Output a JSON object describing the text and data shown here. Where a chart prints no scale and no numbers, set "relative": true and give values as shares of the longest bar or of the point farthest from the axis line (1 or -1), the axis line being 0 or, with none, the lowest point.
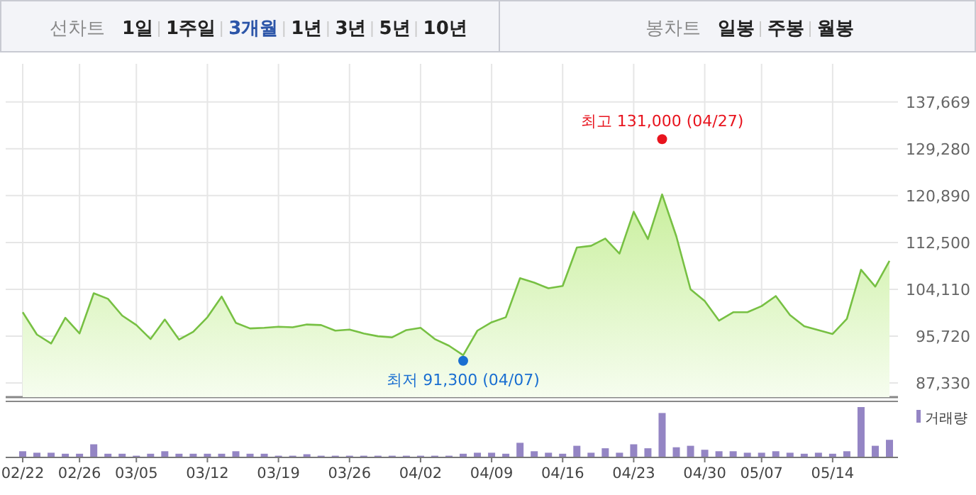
{
  "chart_data": [
    {
      "type": "other",
      "annotations": [
        "선차트",
        "1일",
        "1주일",
        "3개월",
        "1년",
        "3년",
        "5년",
        "10년",
        "봉차트",
        "일봉",
        "주봉",
        "월봉"
      ]
    },
    {
      "type": "area",
      "categories": [
        null,
        null,
        null,
        null,
        null,
        null,
        null,
        null,
        null,
        null,
        null,
        null,
        null,
        null,
        null,
        null,
        null,
        null,
        null,
        null,
        null,
        null,
        null,
        null,
        null,
        null,
        null,
        null,
        null,
        null,
        null,
        null,
        null,
        null,
        null,
        null,
        null,
        null,
        null,
        null,
        null,
        null,
        null,
        null,
        null,
        null,
        null,
        null,
        null,
        null,
        null,
        null,
        null,
        null,
        null,
        null,
        null,
        null,
        null,
        null,
        null,
        null
      ],
      "series": [
        {
          "type": "area",
          "color": "#77c043",
          "values": [
            100000,
            96000,
            94400,
            99000,
            96200,
            103400,
            102400,
            99400,
            97700,
            95200,
            98700,
            95100,
            96500,
            99100,
            102800,
            98100,
            97100,
            97200,
            97400,
            97300,
            97800,
            97700,
            96700,
            96900,
            96200,
            95700,
            95500,
            96800,
            97200,
            95200,
            94000,
            92300,
            96700,
            98200,
            99100,
            106100,
            105300,
            104300,
            104700,
            111600,
            111900,
            113200,
            110500,
            118000,
            113100,
            121100,
            113600,
            104100,
            102000,
            98500,
            100000,
            100000,
            101100,
            102900,
            99500,
            97500,
            96800,
            96100,
            98800,
            107600,
            104600,
            109200
          ]
        },
        {
          "type": "scatter",
          "color": "#e8141e",
          "values": [
            null,
            null,
            null,
            null,
            null,
            null,
            null,
            null,
            null,
            null,
            null,
            null,
            null,
            null,
            null,
            null,
            null,
            null,
            null,
            null,
            null,
            null,
            null,
            null,
            null,
            null,
            null,
            null,
            null,
            null,
            null,
            null,
            null,
            null,
            null,
            null,
            null,
            null,
            null,
            null,
            null,
            null,
            null,
            null,
            null,
            131000,
            null,
            null,
            null,
            null,
            null,
            null,
            null,
            null,
            null,
            null,
            null,
            null,
            null,
            null,
            null,
            null
          ]
        },
        {
          "type": "scatter",
          "color": "#1a6fd1",
          "values": [
            null,
            null,
            null,
            null,
            null,
            null,
            null,
            null,
            null,
            null,
            null,
            null,
            null,
            null,
            null,
            null,
            null,
            null,
            null,
            null,
            null,
            null,
            null,
            null,
            null,
            null,
            null,
            null,
            null,
            null,
            null,
            91300,
            null,
            null,
            null,
            null,
            null,
            null,
            null,
            null,
            null,
            null,
            null,
            null,
            null,
            null,
            null,
            null,
            null,
            null,
            null,
            null,
            null,
            null,
            null,
            null,
            null,
            null,
            null,
            null,
            null,
            null
          ]
        }
      ],
      "annotations": [
        {
          "text": "최고 131,000 (04/27)",
          "y": 131000
        },
        {
          "text": "최저 91,300 (04/07)",
          "y": 91300
        }
      ],
      "ylim": [
        84790,
        144500
      ],
      "yticks": [
        {
          "value": 87330,
          "label": "87,330"
        },
        {
          "value": 95720,
          "label": "95,720"
        },
        {
          "value": 104110,
          "label": "104,110"
        },
        {
          "value": 112500,
          "label": "112,500"
        },
        {
          "value": 120890,
          "label": "120,890"
        },
        {
          "value": 129280,
          "label": "129,280"
        },
        {
          "value": 137669,
          "label": "137,669"
        }
      ],
      "grid": true,
      "tick_labels": "y"
    },
    {
      "type": "bar",
      "relative": true,
      "categories": [
        "02/22",
        null,
        null,
        null,
        "02/26",
        null,
        null,
        null,
        "03/05",
        null,
        null,
        null,
        null,
        "03/12",
        null,
        null,
        null,
        null,
        "03/19",
        null,
        null,
        null,
        null,
        "03/26",
        null,
        null,
        null,
        null,
        "04/02",
        null,
        null,
        null,
        null,
        "04/09",
        null,
        null,
        null,
        null,
        "04/16",
        null,
        null,
        null,
        null,
        "04/23",
        null,
        null,
        null,
        null,
        "04/30",
        null,
        null,
        null,
        "05/07",
        null,
        null,
        null,
        null,
        "05/14",
        null,
        null,
        null,
        null
      ],
      "series": [
        {
          "name": "거래량",
          "color": "#9485c4",
          "values": [
            0.11,
            0.08,
            0.08,
            0.06,
            0.06,
            0.25,
            0.06,
            0.06,
            0.02,
            0.06,
            0.11,
            0.06,
            0.06,
            0.06,
            0.06,
            0.11,
            0.06,
            0.06,
            0.02,
            0.02,
            0.05,
            0.02,
            0.02,
            0.02,
            0.02,
            0.02,
            0.02,
            0.02,
            0.02,
            0.02,
            0.02,
            0.06,
            0.08,
            0.08,
            0.06,
            0.28,
            0.11,
            0.08,
            0.06,
            0.22,
            0.08,
            0.17,
            0.08,
            0.25,
            0.17,
            0.88,
            0.19,
            0.22,
            0.14,
            0.11,
            0.11,
            0.08,
            0.08,
            0.11,
            0.08,
            0.06,
            0.08,
            0.06,
            0.11,
            1,
            0.22,
            0.34
          ]
        }
      ],
      "legend": "top right",
      "tick_labels": "x"
    }
  ]
}
